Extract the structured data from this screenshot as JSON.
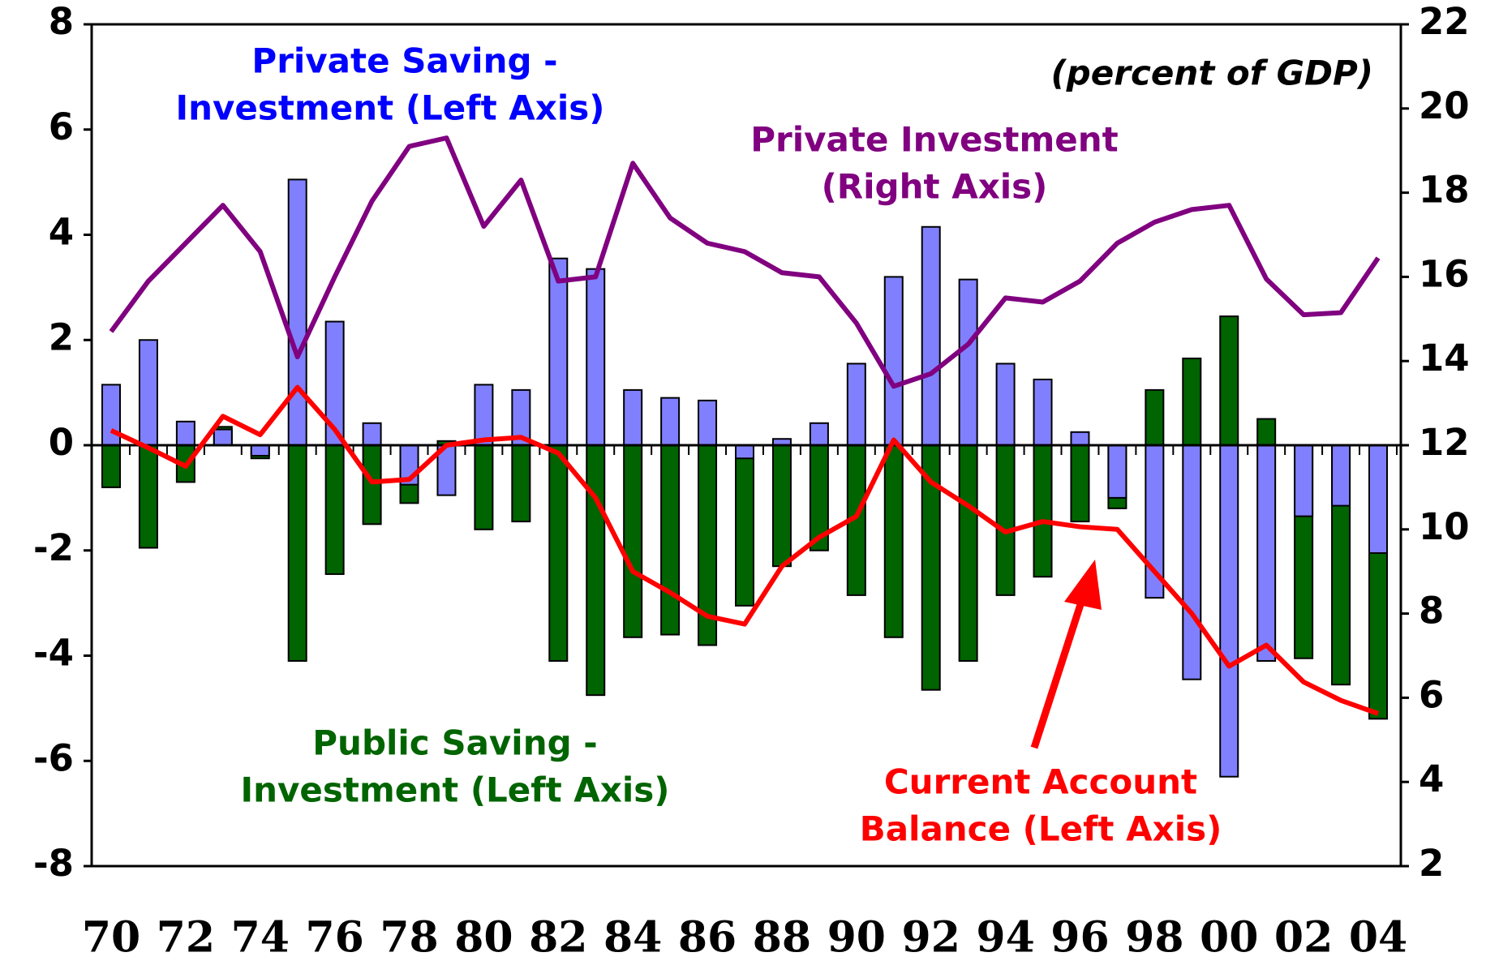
{
  "chart_data": {
    "type": "bar-line",
    "subtitle": "(percent of GDP)",
    "categories": [
      "70",
      null,
      "72",
      null,
      "74",
      null,
      "76",
      null,
      "78",
      null,
      "80",
      null,
      "82",
      null,
      "84",
      null,
      "86",
      null,
      "88",
      null,
      "90",
      null,
      "92",
      null,
      "94",
      null,
      "96",
      null,
      "98",
      null,
      "00",
      null,
      "02",
      null,
      "04"
    ],
    "series": [
      {
        "name": [
          "Public Saving -",
          "Investment (Left Axis)"
        ],
        "kind": "bar",
        "axis": "y",
        "color": "#006400",
        "values": [
          -0.8,
          -1.95,
          -0.7,
          0.35,
          -0.25,
          -4.1,
          -2.45,
          -1.5,
          -1.1,
          0.08,
          -1.6,
          -1.45,
          -4.1,
          -4.75,
          -3.65,
          -3.6,
          -3.8,
          -3.05,
          -2.3,
          -2.0,
          -2.85,
          -3.65,
          -4.65,
          -4.1,
          -2.85,
          -2.5,
          -1.45,
          -1.2,
          1.05,
          1.65,
          2.45,
          0.5,
          -4.05,
          -4.55,
          -5.2
        ]
      },
      {
        "name": [
          "Private Saving -",
          "Investment (Left Axis)"
        ],
        "kind": "bar",
        "axis": "y",
        "color": "#8080ff",
        "values": [
          1.15,
          2.0,
          0.45,
          0.3,
          -0.2,
          5.05,
          2.35,
          0.42,
          -0.75,
          -0.95,
          1.15,
          1.05,
          3.55,
          3.35,
          1.05,
          0.9,
          0.85,
          -0.25,
          0.12,
          0.42,
          1.55,
          3.2,
          4.15,
          3.15,
          1.55,
          1.25,
          0.25,
          -1.0,
          -2.9,
          -4.45,
          -6.3,
          -4.1,
          -1.35,
          -1.15,
          -2.05
        ]
      },
      {
        "name": [
          "Current Account",
          "Balance (Left Axis)"
        ],
        "kind": "line",
        "axis": "y",
        "color": "#ff0000",
        "values": [
          0.28,
          -0.05,
          -0.4,
          0.55,
          0.2,
          1.1,
          0.3,
          -0.7,
          -0.65,
          0.0,
          0.1,
          0.15,
          -0.15,
          -1.0,
          -2.4,
          -2.8,
          -3.25,
          -3.4,
          -2.3,
          -1.75,
          -1.35,
          0.1,
          -0.7,
          -1.15,
          -1.65,
          -1.45,
          -1.55,
          -1.6,
          -2.4,
          -3.2,
          -4.2,
          -3.8,
          -4.5,
          -4.85,
          -5.1
        ]
      },
      {
        "name": [
          "Private Investment",
          "(Right Axis)"
        ],
        "kind": "line",
        "axis": "y2",
        "color": "#800080",
        "values": [
          14.7,
          15.9,
          16.8,
          17.7,
          16.6,
          14.1,
          16.0,
          17.8,
          19.1,
          19.3,
          17.2,
          18.3,
          15.9,
          16.0,
          18.7,
          17.4,
          16.8,
          16.6,
          16.1,
          16.0,
          14.9,
          13.4,
          13.7,
          14.4,
          15.5,
          15.4,
          15.9,
          16.8,
          17.3,
          17.6,
          17.7,
          15.95,
          15.1,
          15.15,
          16.45
        ]
      }
    ],
    "ylim": [
      -8,
      8
    ],
    "yticks": [
      -8,
      -6,
      -4,
      -2,
      0,
      2,
      4,
      6,
      8
    ],
    "y2lim": [
      2,
      22
    ],
    "y2ticks": [
      2,
      4,
      6,
      8,
      10,
      12,
      14,
      16,
      18,
      20,
      22
    ],
    "grid": false
  }
}
